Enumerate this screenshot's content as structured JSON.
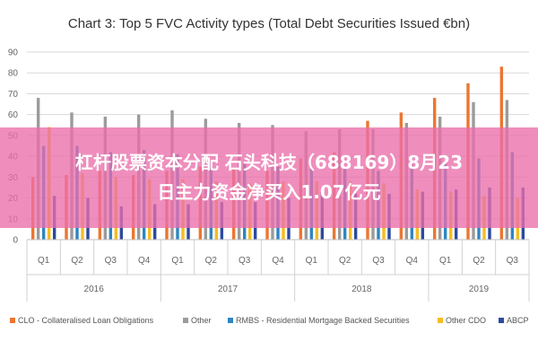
{
  "chart_data": {
    "type": "bar",
    "title": "Chart 3: Top 5 FVC Activity types (Total Debt Securities Issued €bn)",
    "xlabel": "",
    "ylabel": "",
    "ylim": [
      0,
      90
    ],
    "yticks": [
      0,
      10,
      20,
      30,
      40,
      50,
      60,
      70,
      80,
      90
    ],
    "grid": true,
    "legend_position": "bottom",
    "categories": [
      "Q1",
      "Q2",
      "Q3",
      "Q4",
      "Q1",
      "Q2",
      "Q3",
      "Q4",
      "Q1",
      "Q2",
      "Q3",
      "Q4",
      "Q1",
      "Q2",
      "Q3"
    ],
    "years": [
      {
        "label": "2016",
        "quarters": 4
      },
      {
        "label": "2017",
        "quarters": 4
      },
      {
        "label": "2018",
        "quarters": 4
      },
      {
        "label": "2019",
        "quarters": 3
      }
    ],
    "series": [
      {
        "name": "CLO - Collateralised Loan Obligations",
        "color": "#ec7630",
        "values": [
          30,
          31,
          33,
          31,
          33,
          35,
          34,
          33,
          39,
          42,
          57,
          61,
          68,
          75,
          83
        ]
      },
      {
        "name": "Other",
        "color": "#9b9b9b",
        "values": [
          68,
          61,
          59,
          60,
          62,
          58,
          56,
          55,
          52,
          53,
          53,
          56,
          59,
          66,
          67
        ]
      },
      {
        "name": "RMBS - Residential Mortgage Backed Securities",
        "color": "#2e86c1",
        "values": [
          45,
          45,
          42,
          43,
          41,
          38,
          37,
          35,
          34,
          35,
          33,
          36,
          37,
          39,
          42
        ]
      },
      {
        "name": "Other CDO",
        "color": "#f5bd1f",
        "values": [
          54,
          32,
          30,
          29,
          29,
          28,
          27,
          28,
          28,
          28,
          27,
          24,
          23,
          21,
          20
        ]
      },
      {
        "name": "ABCP",
        "color": "#2c4a9e",
        "values": [
          21,
          20,
          16,
          17,
          17,
          18,
          18,
          20,
          23,
          22,
          22,
          23,
          24,
          25,
          25
        ]
      }
    ]
  },
  "banner": {
    "line1": "杠杆股票资本分配 石头科技（688169）8月23",
    "line2": "日主力资金净买入1.07亿元"
  }
}
